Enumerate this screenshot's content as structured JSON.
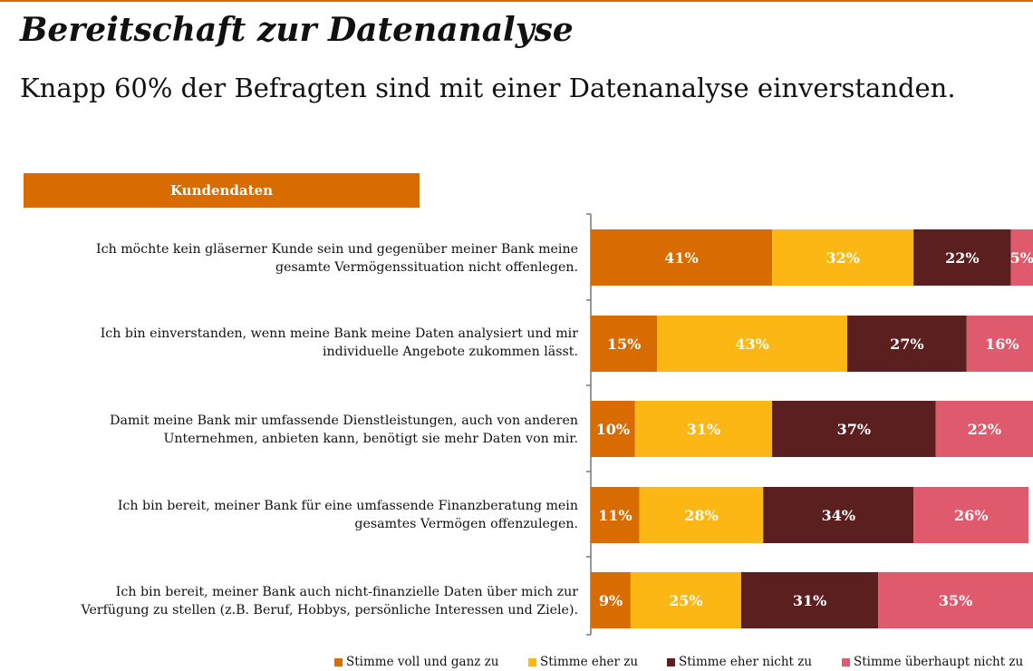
{
  "title": "Bereitschaft zur Datenanalyse",
  "subtitle": "Knapp 60% der Befragten sind mit einer Datenanalyse einverstanden.",
  "section_header": "Kundendaten",
  "statements": [
    [
      "Ich möchte kein gläserner Kunde sein und gegenüber meiner Bank meine",
      "gesamte Vermögenssituation nicht offenlegen."
    ],
    [
      "Ich bin einverstanden, wenn meine Bank meine Daten analysiert und mir",
      "individuelle Angebote zukommen lässt."
    ],
    [
      "Damit meine Bank mir umfassende Dienstleistungen, auch von anderen",
      "Unternehmen, anbieten kann, benötigt sie mehr Daten von mir."
    ],
    [
      "Ich bin bereit, meiner Bank für eine umfassende Finanzberatung mein",
      "gesamtes Vermögen offenzulegen."
    ],
    [
      "Ich bin bereit, meiner Bank auch nicht-finanzielle Daten über mich zur",
      "Verfügung zu stellen (z.B. Beruf, Hobbys, persönliche Interessen und Ziele)."
    ]
  ],
  "chart_data": {
    "type": "bar",
    "orientation": "horizontal",
    "stacked": true,
    "unit": "%",
    "categories": [
      "Ich möchte kein gläserner Kunde sein und gegenüber meiner Bank meine gesamte Vermögenssituation nicht offenlegen.",
      "Ich bin einverstanden, wenn meine Bank meine Daten analysiert und mir individuelle Angebote zukommen lässt.",
      "Damit meine Bank mir umfassende Dienstleistungen, auch von anderen Unternehmen, anbieten kann, benötigt sie mehr Daten von mir.",
      "Ich bin bereit, meiner Bank für eine umfassende Finanzberatung mein gesamtes Vermögen offenzulegen.",
      "Ich bin bereit, meiner Bank auch nicht-finanzielle Daten über mich zur Verfügung zu stellen (z.B. Beruf, Hobbys, persönliche Interessen und Ziele)."
    ],
    "series": [
      {
        "name": "Stimme voll und ganz zu",
        "color": "#d96c00",
        "values": [
          41,
          15,
          10,
          11,
          9
        ]
      },
      {
        "name": "Stimme eher zu",
        "color": "#fcb714",
        "values": [
          32,
          43,
          31,
          28,
          25
        ]
      },
      {
        "name": "Stimme eher nicht zu",
        "color": "#5c1f1f",
        "values": [
          22,
          27,
          37,
          34,
          31
        ]
      },
      {
        "name": "Stimme überhaupt nicht zu",
        "color": "#df5a6c",
        "values": [
          5,
          16,
          22,
          26,
          35
        ]
      }
    ],
    "legend_position": "bottom",
    "grid": false,
    "xlim": [
      0,
      100
    ]
  }
}
